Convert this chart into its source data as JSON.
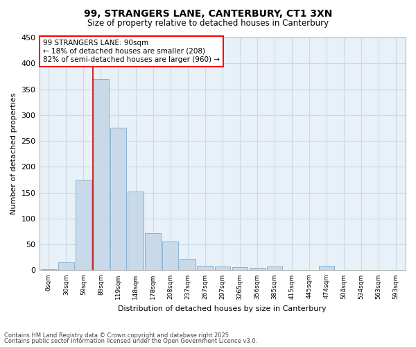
{
  "title_line1": "99, STRANGERS LANE, CANTERBURY, CT1 3XN",
  "title_line2": "Size of property relative to detached houses in Canterbury",
  "xlabel": "Distribution of detached houses by size in Canterbury",
  "ylabel": "Number of detached properties",
  "bar_color": "#c8daea",
  "bar_edge_color": "#7aaac8",
  "grid_color": "#c8daea",
  "background_color": "#ffffff",
  "ax_background_color": "#e8f0f8",
  "tick_labels": [
    "0sqm",
    "30sqm",
    "59sqm",
    "89sqm",
    "119sqm",
    "148sqm",
    "178sqm",
    "208sqm",
    "237sqm",
    "267sqm",
    "297sqm",
    "3265qm",
    "356sqm",
    "385sqm",
    "415sqm",
    "445sqm",
    "474sqm",
    "504sqm",
    "534sqm",
    "563sqm",
    "593sqm"
  ],
  "values": [
    2,
    15,
    175,
    370,
    275,
    152,
    72,
    55,
    22,
    9,
    7,
    6,
    5,
    7,
    0,
    0,
    8,
    0,
    0,
    0,
    1
  ],
  "ylim": [
    0,
    450
  ],
  "yticks": [
    0,
    50,
    100,
    150,
    200,
    250,
    300,
    350,
    400,
    450
  ],
  "property_line_bar_index": 3,
  "annotation_box_text": "99 STRANGERS LANE: 90sqm\n← 18% of detached houses are smaller (208)\n82% of semi-detached houses are larger (960) →",
  "annotation_box_color": "white",
  "annotation_box_edge_color": "red",
  "footer_line1": "Contains HM Land Registry data © Crown copyright and database right 2025.",
  "footer_line2": "Contains public sector information licensed under the Open Government Licence v3.0.",
  "property_line_color": "#cc0000",
  "figsize": [
    6.0,
    5.0
  ],
  "dpi": 100
}
